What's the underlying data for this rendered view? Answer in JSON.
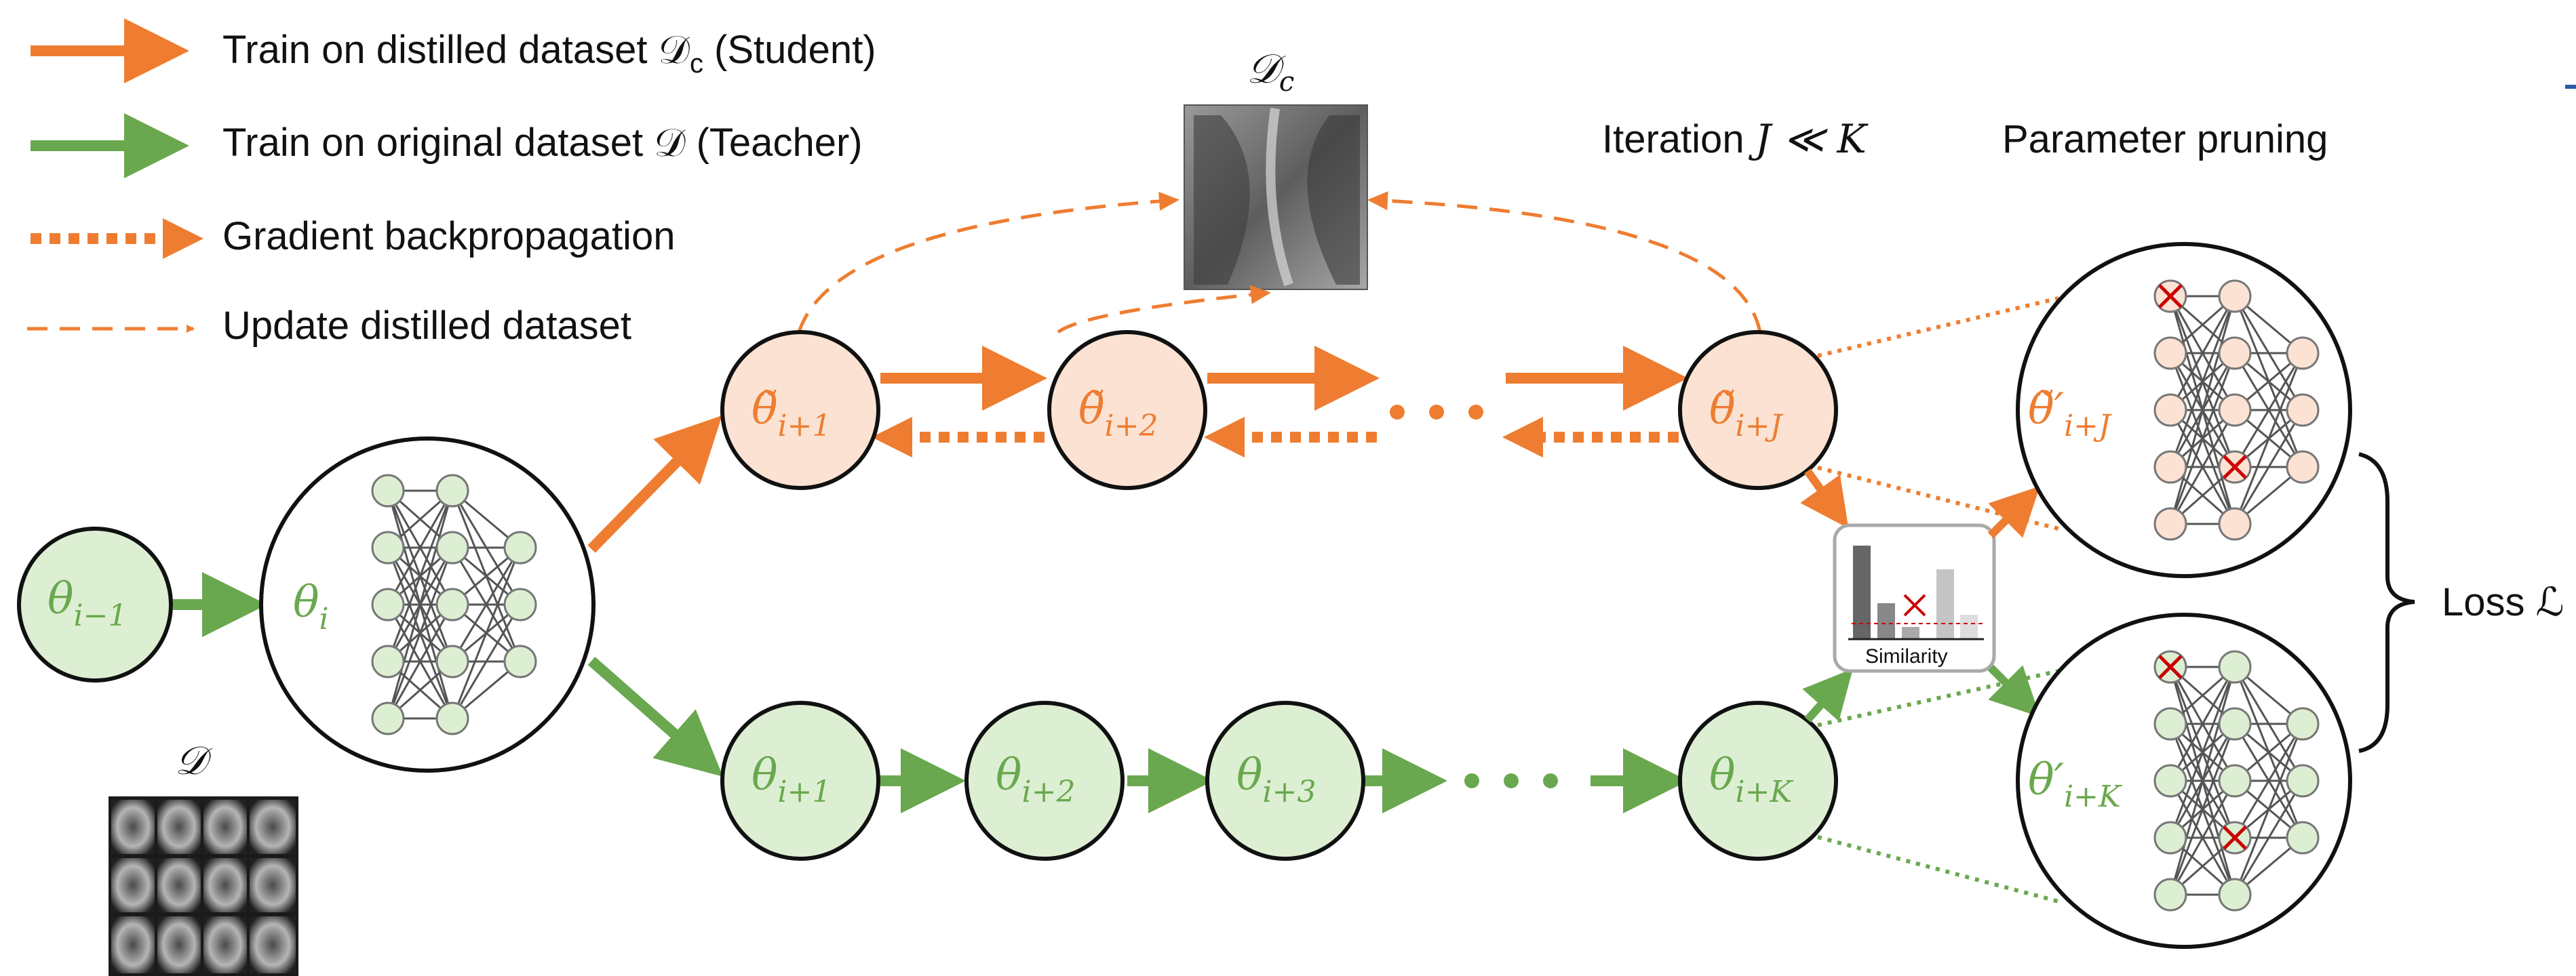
{
  "colors": {
    "student": "#ee7d31",
    "student_fill": "#fbe2d3",
    "teacher": "#6aa84f",
    "teacher_fill": "#ddefd3",
    "pruned": "#cc0000"
  },
  "legend": {
    "train_distilled": "Train on distilled dataset 𝒟",
    "train_distilled_sub": "c",
    "train_distilled_tail": " (Student)",
    "train_original": "Train on original dataset 𝒟 (Teacher)",
    "gradient": "Gradient backpropagation",
    "update": "Update distilled dataset"
  },
  "top_labels": {
    "iteration_prefix": "Iteration ",
    "iteration_math": "J ≪ K",
    "pruning": "Parameter pruning",
    "distilled_dataset": "𝒟",
    "distilled_dataset_sub": "c",
    "original_dataset": "𝒟"
  },
  "nodes": {
    "theta_prev": "θ",
    "theta_prev_sub": "i−1",
    "theta_i": "θ",
    "theta_i_sub": "i",
    "student": [
      {
        "base": "θ̃",
        "sub": "i+1"
      },
      {
        "base": "θ̃",
        "sub": "i+2"
      },
      {
        "base": "θ̃",
        "sub": "i+J"
      }
    ],
    "teacher": [
      {
        "base": "θ",
        "sub": "i+1"
      },
      {
        "base": "θ",
        "sub": "i+2"
      },
      {
        "base": "θ",
        "sub": "i+3"
      },
      {
        "base": "θ",
        "sub": "i+K"
      }
    ],
    "pruned_student": {
      "base": "θ̃′",
      "sub": "i+J"
    },
    "pruned_teacher": {
      "base": "θ′",
      "sub": "i+K"
    }
  },
  "similarity_label": "Similarity",
  "loss_label": "Loss ℒ"
}
